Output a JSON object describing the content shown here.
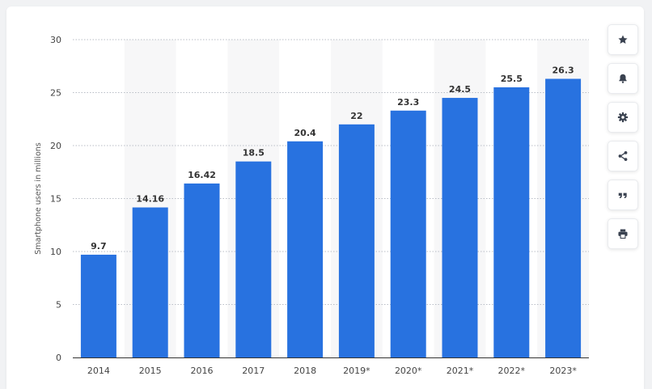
{
  "chart_data": {
    "type": "bar",
    "categories": [
      "2014",
      "2015",
      "2016",
      "2017",
      "2018",
      "2019*",
      "2020*",
      "2021*",
      "2022*",
      "2023*"
    ],
    "values": [
      9.7,
      14.16,
      16.42,
      18.5,
      20.4,
      22,
      23.3,
      24.5,
      25.5,
      26.3
    ],
    "value_labels": [
      "9.7",
      "14.16",
      "16.42",
      "18.5",
      "20.4",
      "22",
      "23.3",
      "24.5",
      "25.5",
      "26.3"
    ],
    "title": "",
    "xlabel": "",
    "ylabel": "Smartphone users in millions",
    "ylim": [
      0,
      30
    ],
    "yticks": [
      0,
      5,
      10,
      15,
      20,
      25,
      30
    ],
    "ytick_labels": [
      "0",
      "5",
      "10",
      "15",
      "20",
      "25",
      "30"
    ],
    "grid": true,
    "bar_color": "#2872e0",
    "alt_band_color": "#f7f7f8"
  },
  "toolbar": {
    "buttons": [
      {
        "name": "favorite-button",
        "icon": "star-icon"
      },
      {
        "name": "notification-button",
        "icon": "bell-icon"
      },
      {
        "name": "settings-button",
        "icon": "gear-icon"
      },
      {
        "name": "share-button",
        "icon": "share-icon"
      },
      {
        "name": "cite-button",
        "icon": "quote-icon"
      },
      {
        "name": "print-button",
        "icon": "print-icon"
      }
    ],
    "icon_color": "#3a4250"
  }
}
